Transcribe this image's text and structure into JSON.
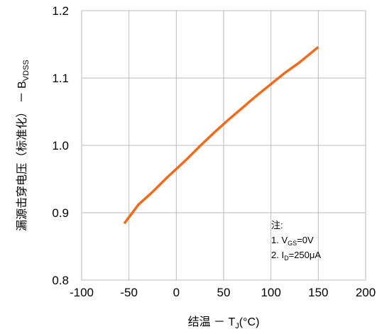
{
  "chart_data": {
    "type": "line",
    "xlabel": {
      "prefix": "结温 － T",
      "sub": "J",
      "suffix": "(°C)"
    },
    "ylabel": {
      "prefix": "漏源击穿电压（标准化） － B",
      "sub": "VDSS"
    },
    "xlim": [
      -100,
      200
    ],
    "ylim": [
      0.8,
      1.2
    ],
    "x_ticks": [
      -100,
      -50,
      0,
      50,
      100,
      150,
      200
    ],
    "y_ticks": [
      0.8,
      0.9,
      1.0,
      1.1,
      1.2
    ],
    "x_tick_labels": [
      "-100",
      "-50",
      "0",
      "50",
      "100",
      "150",
      "200"
    ],
    "y_tick_labels": [
      "0.8",
      "0.9",
      "1.0",
      "1.1",
      "1.2"
    ],
    "grid": true,
    "series": [
      {
        "color": "#f26a1b",
        "x": [
          -55,
          -40,
          -25,
          -10,
          0,
          10,
          25,
          40,
          55,
          70,
          85,
          100,
          115,
          130,
          150
        ],
        "y": [
          0.884,
          0.912,
          0.931,
          0.952,
          0.965,
          0.978,
          0.999,
          1.019,
          1.038,
          1.056,
          1.074,
          1.091,
          1.108,
          1.123,
          1.146
        ]
      }
    ],
    "note": {
      "title": "注:",
      "line1": {
        "prefix": "1. V",
        "sub": "GS",
        "suffix": "=0V"
      },
      "line2": {
        "prefix": "2. I",
        "sub": "D",
        "suffix": "=250μA"
      }
    }
  }
}
